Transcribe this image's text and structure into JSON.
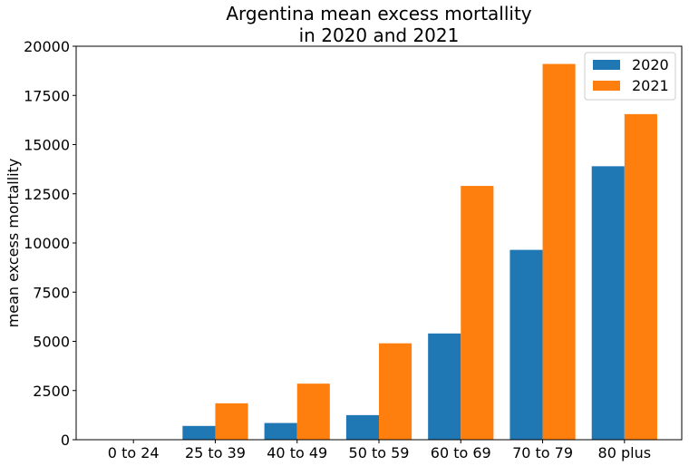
{
  "chart_data": {
    "type": "bar",
    "title_lines": [
      "Argentina mean excess mortallity",
      "in 2020 and 2021"
    ],
    "xlabel": "",
    "ylabel": "mean excess mortallity",
    "categories": [
      "0 to 24",
      "25 to 39",
      "40 to 49",
      "50 to 59",
      "60 to 69",
      "70 to 79",
      "80 plus"
    ],
    "series": [
      {
        "name": "2020",
        "color": "#1f77b4",
        "values": [
          0,
          700,
          850,
          1250,
          5400,
          9650,
          13900
        ]
      },
      {
        "name": "2021",
        "color": "#ff7f0e",
        "values": [
          0,
          1850,
          2850,
          4900,
          12900,
          19100,
          16550
        ]
      }
    ],
    "ylim": [
      0,
      20000
    ],
    "yticks": [
      0,
      2500,
      5000,
      7500,
      10000,
      12500,
      15000,
      17500,
      20000
    ],
    "grid": false,
    "legend_position": "top-right"
  }
}
